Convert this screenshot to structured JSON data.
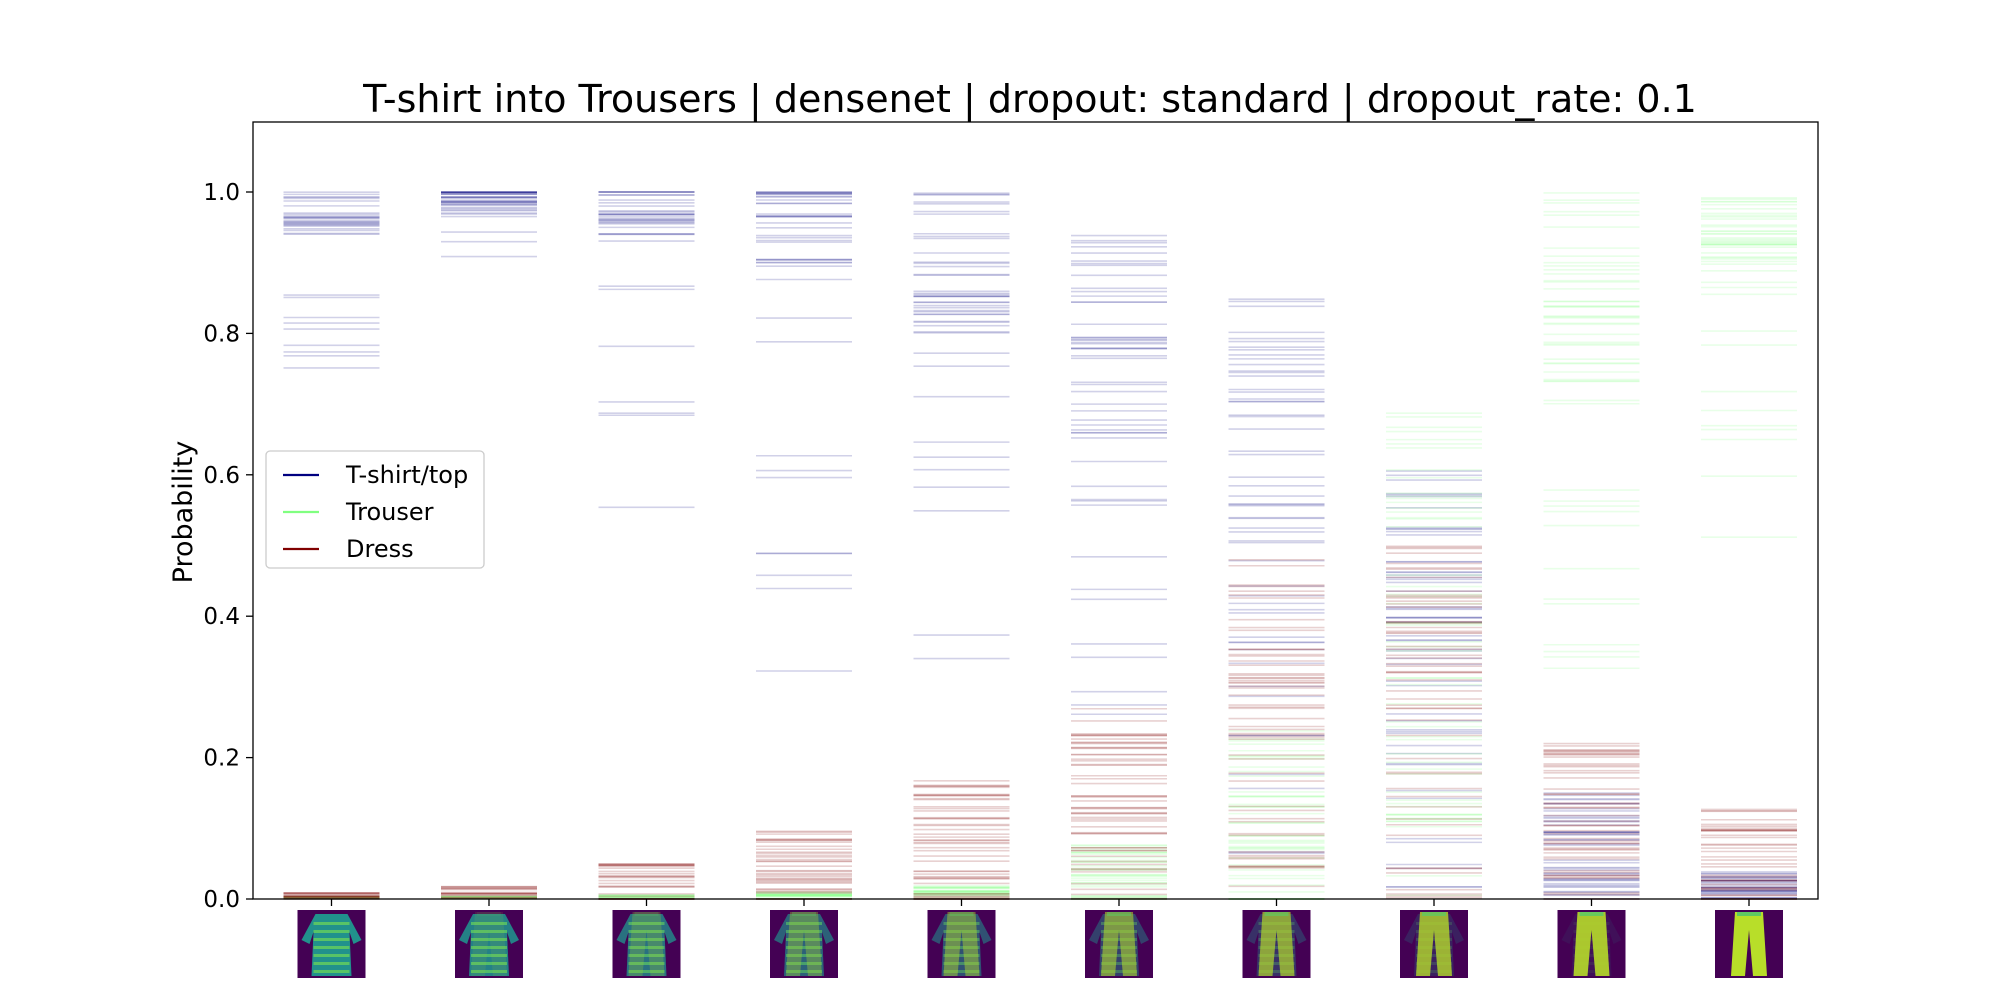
{
  "chart_data": {
    "type": "line",
    "title": "T-shirt into Trousers | densenet | dropout: standard | dropout_rate: 0.1",
    "xlabel": "",
    "ylabel": "Probability",
    "ylim": [
      0.0,
      1.1
    ],
    "yticks": [
      "0.0",
      "0.2",
      "0.4",
      "0.6",
      "0.8",
      "1.0"
    ],
    "legend_position": "center-left",
    "grid": false,
    "series": [
      {
        "name": "T-shirt/top",
        "color": "#000080",
        "steps": [
          {
            "center": 0.97,
            "spread": 0.03,
            "tail_low": 0.72,
            "count": 35
          },
          {
            "center": 0.985,
            "spread": 0.02,
            "tail_low": 0.82,
            "count": 35
          },
          {
            "center": 0.97,
            "spread": 0.04,
            "tail_low": 0.54,
            "count": 35
          },
          {
            "center": 0.95,
            "spread": 0.06,
            "tail_low": 0.3,
            "count": 40
          },
          {
            "center": 0.9,
            "spread": 0.1,
            "tail_low": 0.3,
            "count": 45
          },
          {
            "center": 0.8,
            "spread": 0.15,
            "tail_low": 0.2,
            "count": 50
          },
          {
            "center": 0.6,
            "spread": 0.25,
            "tail_low": 0.05,
            "count": 55
          },
          {
            "center": 0.4,
            "spread": 0.22,
            "tail_low": 0.01,
            "count": 55
          },
          {
            "center": 0.08,
            "spread": 0.08,
            "tail_low": 0.0,
            "count": 45
          },
          {
            "center": 0.02,
            "spread": 0.02,
            "tail_low": 0.0,
            "count": 30
          }
        ]
      },
      {
        "name": "Trouser",
        "color": "#80ff80",
        "steps": [
          {
            "center": 0.002,
            "spread": 0.002,
            "tail_low": 0.0,
            "count": 15
          },
          {
            "center": 0.002,
            "spread": 0.002,
            "tail_low": 0.0,
            "count": 15
          },
          {
            "center": 0.003,
            "spread": 0.003,
            "tail_low": 0.0,
            "count": 15
          },
          {
            "center": 0.005,
            "spread": 0.005,
            "tail_low": 0.0,
            "count": 20
          },
          {
            "center": 0.01,
            "spread": 0.01,
            "tail_low": 0.0,
            "count": 25
          },
          {
            "center": 0.03,
            "spread": 0.05,
            "tail_low": 0.0,
            "count": 35
          },
          {
            "center": 0.1,
            "spread": 0.15,
            "tail_low": 0.0,
            "count": 45
          },
          {
            "center": 0.4,
            "spread": 0.3,
            "tail_low": 0.0,
            "count": 55
          },
          {
            "center": 0.85,
            "spread": 0.15,
            "tail_low": 0.3,
            "count": 50
          },
          {
            "center": 0.95,
            "spread": 0.05,
            "tail_low": 0.5,
            "count": 45
          }
        ]
      },
      {
        "name": "Dress",
        "color": "#800000",
        "steps": [
          {
            "center": 0.005,
            "spread": 0.005,
            "tail_low": 0.0,
            "count": 20
          },
          {
            "center": 0.01,
            "spread": 0.01,
            "tail_low": 0.0,
            "count": 20
          },
          {
            "center": 0.02,
            "spread": 0.03,
            "tail_low": 0.0,
            "count": 30
          },
          {
            "center": 0.04,
            "spread": 0.06,
            "tail_low": 0.0,
            "count": 40
          },
          {
            "center": 0.07,
            "spread": 0.1,
            "tail_low": 0.0,
            "count": 50
          },
          {
            "center": 0.12,
            "spread": 0.15,
            "tail_low": 0.0,
            "count": 55
          },
          {
            "center": 0.25,
            "spread": 0.25,
            "tail_low": 0.0,
            "count": 55
          },
          {
            "center": 0.25,
            "spread": 0.25,
            "tail_low": 0.0,
            "count": 55
          },
          {
            "center": 0.1,
            "spread": 0.12,
            "tail_low": 0.0,
            "count": 50
          },
          {
            "center": 0.05,
            "spread": 0.08,
            "tail_low": 0.0,
            "count": 40
          }
        ]
      }
    ],
    "x_steps": 10,
    "thumbnail_colors": {
      "background": "#440154",
      "dark": "#3b528b",
      "mid": "#21918c",
      "light": "#5ec962",
      "bright": "#b8de29"
    }
  }
}
